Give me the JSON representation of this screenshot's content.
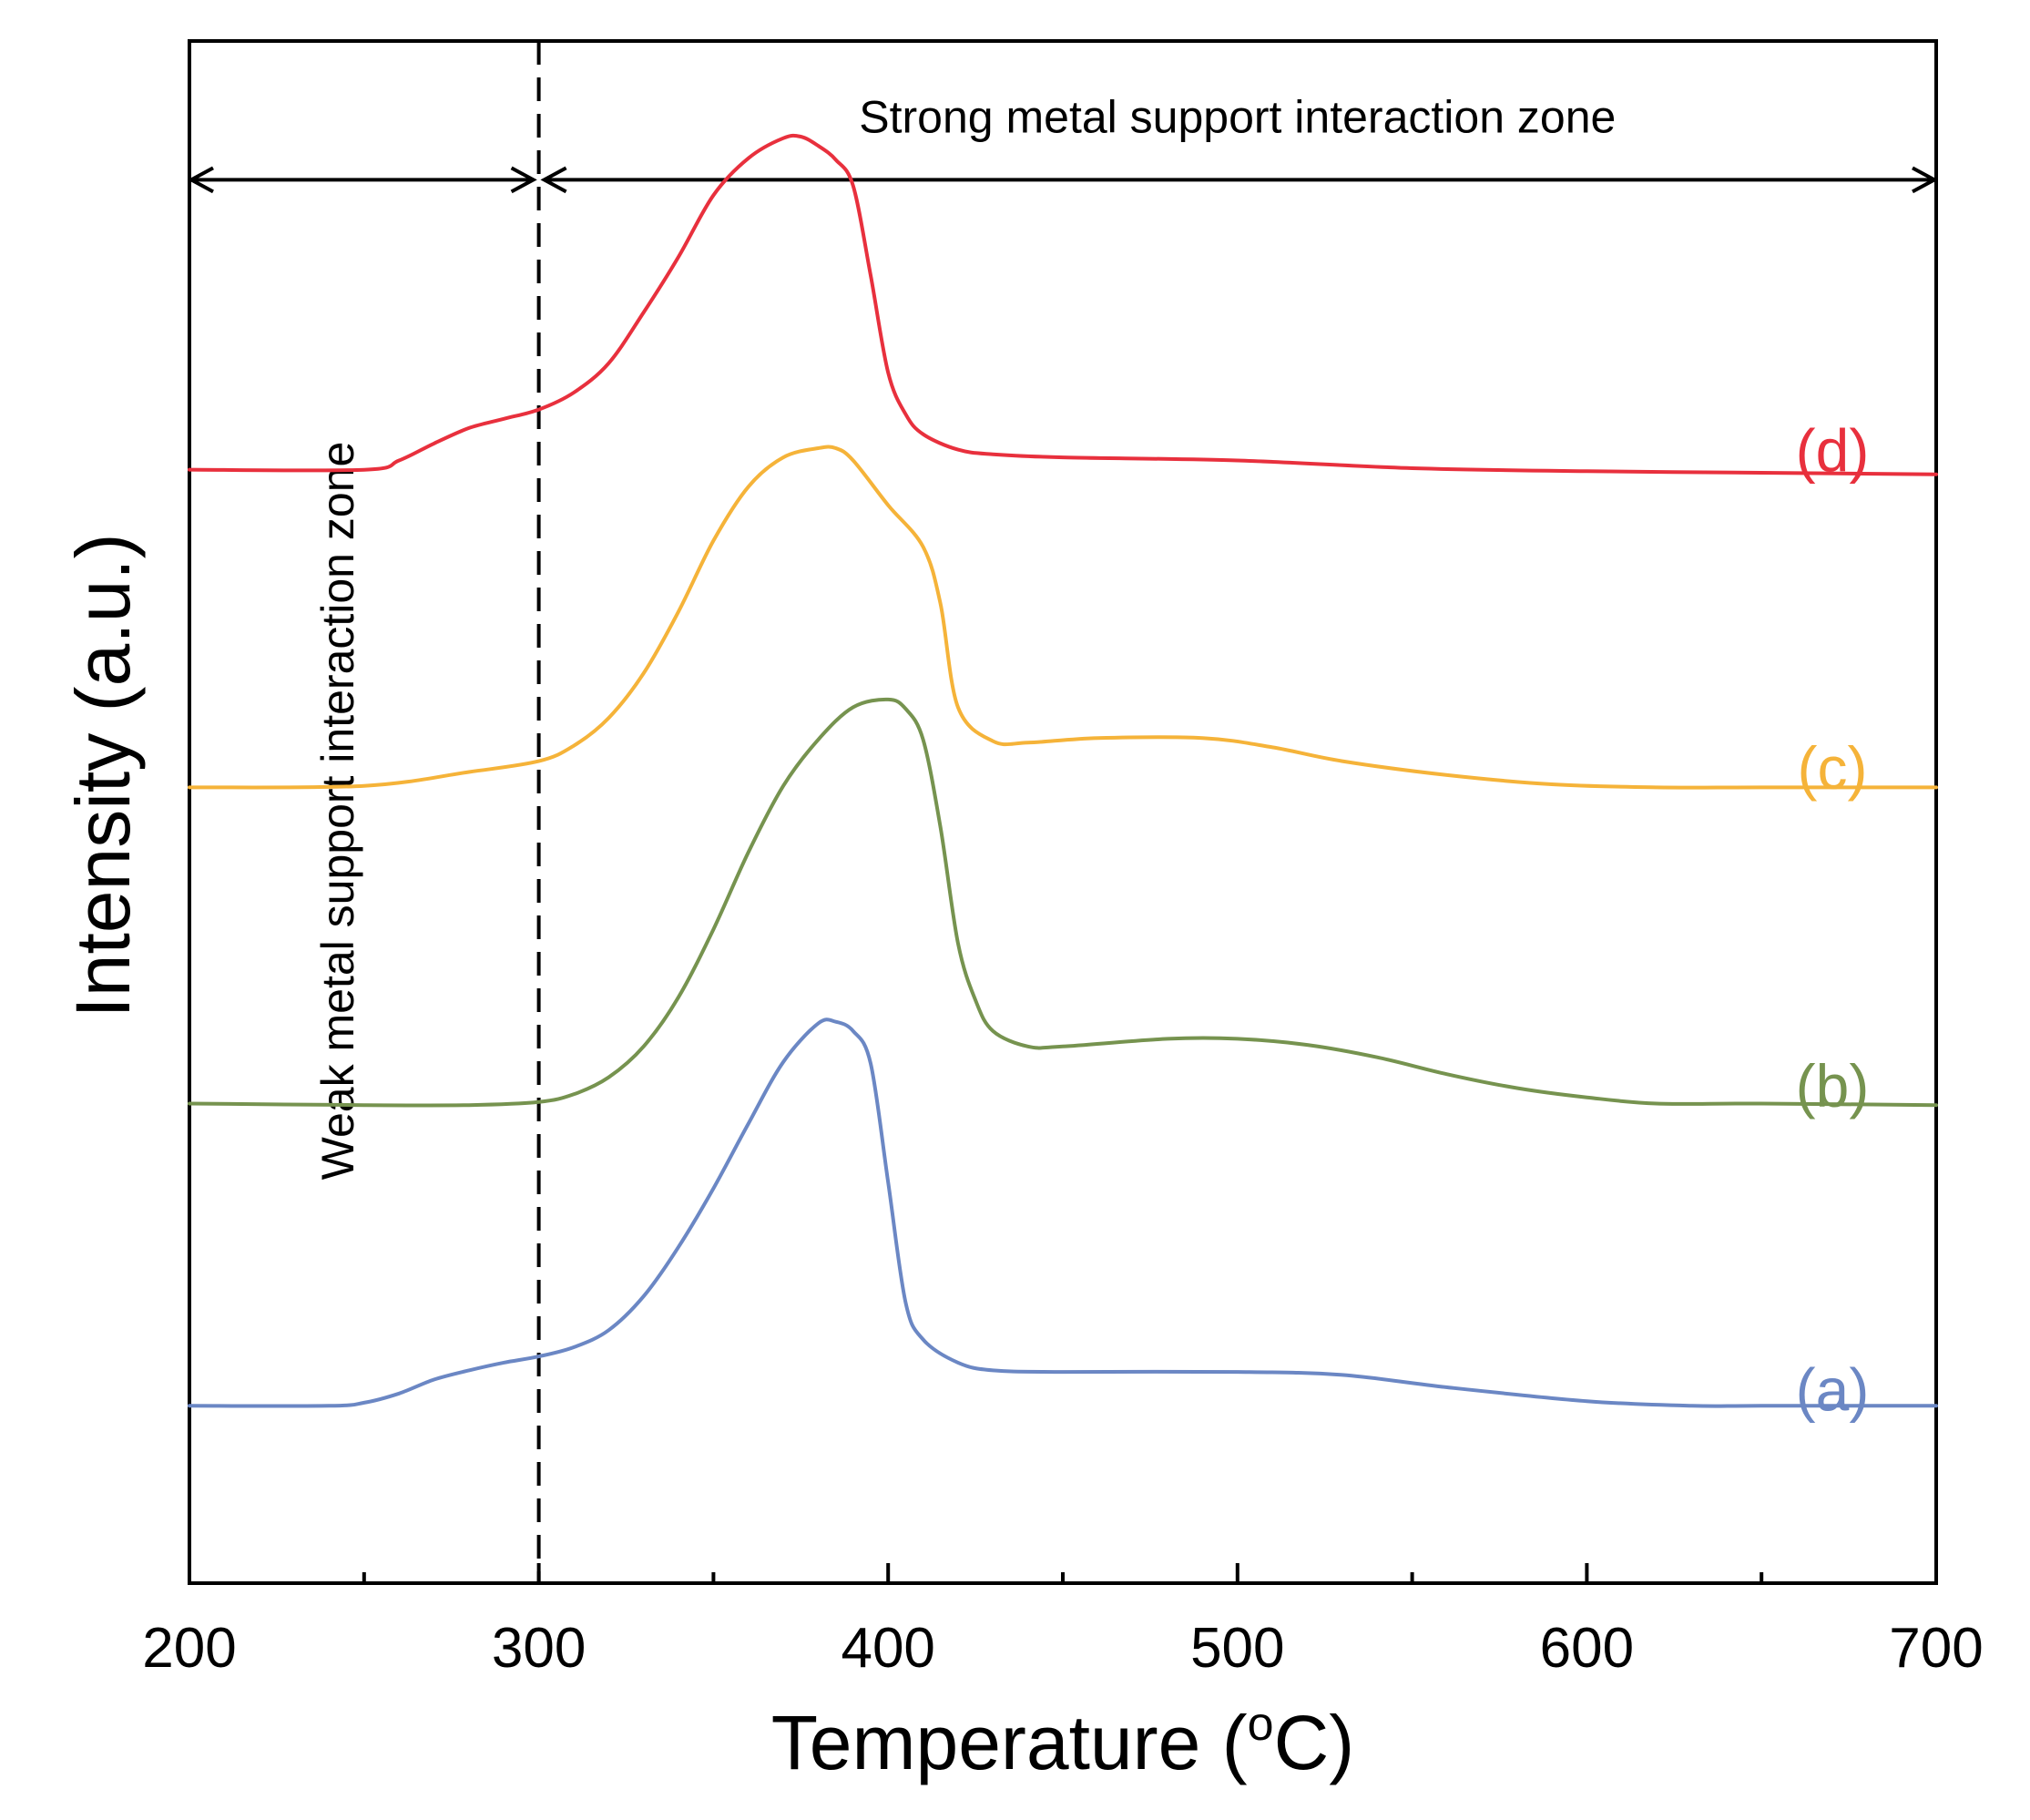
{
  "chart_data": {
    "type": "line",
    "xlabel": "Temperature (",
    "xlabel_sup": "o",
    "xlabel_unit": "C)",
    "ylabel": "Intensity (a.u.)",
    "xlim": [
      200,
      700
    ],
    "ylim": [
      0,
      10
    ],
    "x_ticks": [
      "200",
      "300",
      "400",
      "500",
      "600",
      "700"
    ],
    "x_tick_values": [
      200,
      300,
      400,
      500,
      600,
      700
    ],
    "x_minor_ticks": [
      250,
      350,
      450,
      550,
      650
    ],
    "grid": false,
    "annotations": {
      "strong_zone": "Strong metal support interaction zone",
      "weak_zone": "Weak metal support interaction zone",
      "divider_x": 300,
      "arrow_y": 9.1
    },
    "series": [
      {
        "name": "(a)",
        "color": "#6b87c4",
        "x": [
          200,
          240,
          250,
          260,
          270,
          280,
          290,
          300,
          310,
          320,
          330,
          340,
          350,
          360,
          370,
          380,
          385,
          390,
          395,
          400,
          405,
          410,
          420,
          430,
          450,
          500,
          530,
          560,
          600,
          630,
          650,
          700
        ],
        "y": [
          1.15,
          1.15,
          1.17,
          1.23,
          1.32,
          1.38,
          1.43,
          1.47,
          1.53,
          1.64,
          1.86,
          2.18,
          2.56,
          2.98,
          3.38,
          3.63,
          3.64,
          3.58,
          3.37,
          2.6,
          1.82,
          1.58,
          1.43,
          1.38,
          1.37,
          1.37,
          1.35,
          1.27,
          1.18,
          1.15,
          1.15,
          1.15
        ]
      },
      {
        "name": "(b)",
        "color": "#76934f",
        "x": [
          200,
          250,
          280,
          300,
          310,
          320,
          330,
          340,
          350,
          360,
          370,
          380,
          390,
          400,
          405,
          410,
          415,
          420,
          425,
          430,
          440,
          450,
          480,
          500,
          520,
          540,
          560,
          580,
          600,
          620,
          650,
          700
        ],
        "y": [
          3.11,
          3.1,
          3.1,
          3.12,
          3.17,
          3.28,
          3.48,
          3.8,
          4.24,
          4.74,
          5.17,
          5.47,
          5.68,
          5.73,
          5.67,
          5.47,
          4.9,
          4.15,
          3.78,
          3.58,
          3.48,
          3.48,
          3.53,
          3.53,
          3.49,
          3.41,
          3.3,
          3.21,
          3.15,
          3.11,
          3.11,
          3.1
        ]
      },
      {
        "name": "(c)",
        "color": "#f5b339",
        "x": [
          200,
          250,
          280,
          300,
          310,
          320,
          330,
          340,
          350,
          360,
          370,
          380,
          385,
          390,
          400,
          410,
          415,
          420,
          430,
          440,
          460,
          490,
          510,
          530,
          560,
          590,
          620,
          650,
          700
        ],
        "y": [
          5.16,
          5.17,
          5.26,
          5.33,
          5.43,
          5.61,
          5.9,
          6.3,
          6.76,
          7.11,
          7.3,
          7.36,
          7.36,
          7.28,
          6.99,
          6.72,
          6.35,
          5.68,
          5.46,
          5.45,
          5.48,
          5.48,
          5.42,
          5.33,
          5.24,
          5.18,
          5.16,
          5.16,
          5.16
        ]
      },
      {
        "name": "(d)",
        "color": "#e8303d",
        "x": [
          200,
          250,
          260,
          270,
          280,
          290,
          300,
          310,
          320,
          330,
          340,
          350,
          360,
          370,
          375,
          380,
          385,
          390,
          395,
          400,
          405,
          410,
          420,
          430,
          450,
          500,
          550,
          600,
          650,
          700
        ],
        "y": [
          7.22,
          7.22,
          7.28,
          7.39,
          7.49,
          7.55,
          7.61,
          7.72,
          7.91,
          8.24,
          8.6,
          9.0,
          9.24,
          9.37,
          9.38,
          9.32,
          9.23,
          9.06,
          8.48,
          7.85,
          7.58,
          7.45,
          7.35,
          7.32,
          7.3,
          7.28,
          7.23,
          7.21,
          7.2,
          7.19
        ]
      }
    ],
    "series_label_y": [
      1.25,
      3.22,
      5.28,
      7.34
    ]
  }
}
